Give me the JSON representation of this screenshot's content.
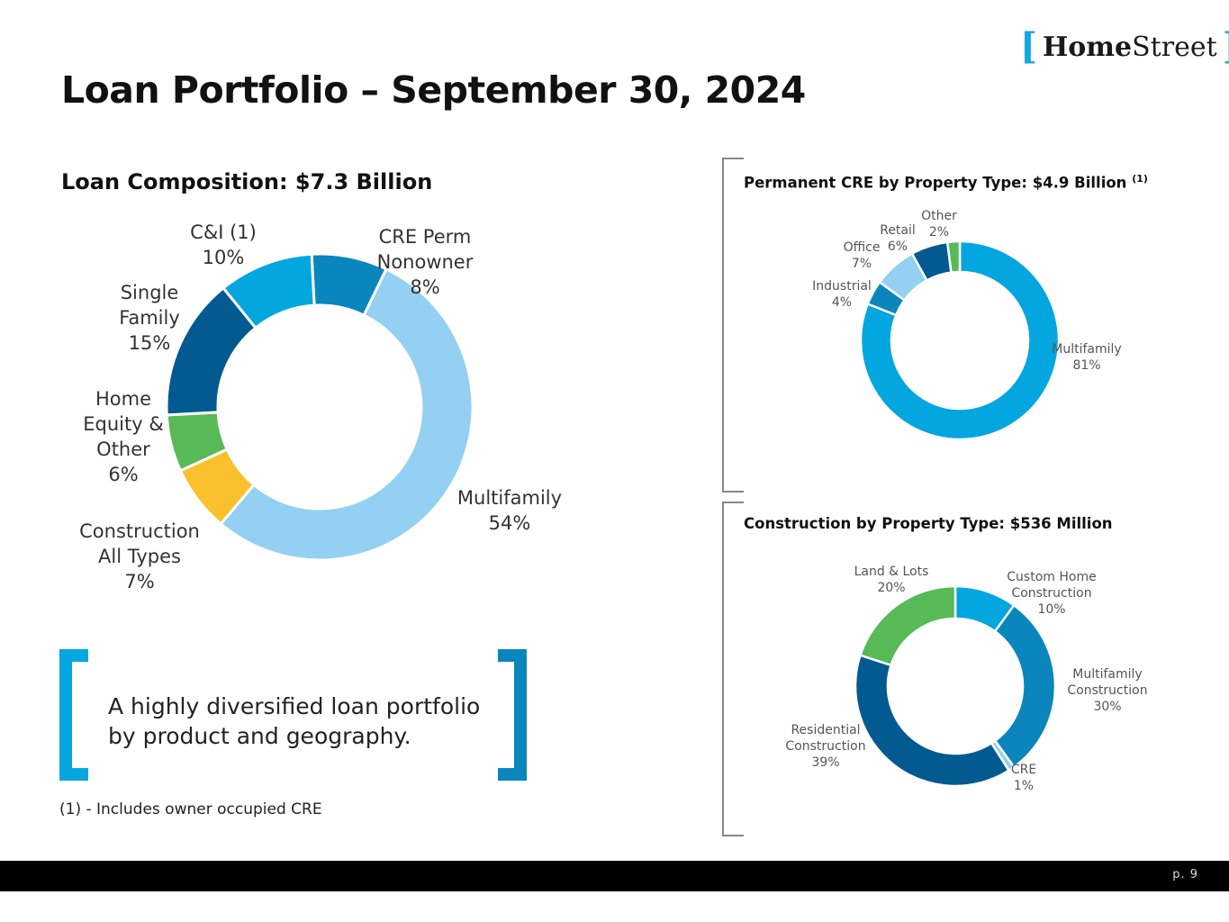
{
  "logo": {
    "open": "[",
    "home": "Home",
    "street": "Street",
    "close": "]"
  },
  "title": "Loan Portfolio – September 30, 2024",
  "quote": {
    "line1": "A highly diversified loan portfolio",
    "line2": "by product and geography."
  },
  "footnote": "(1) - Includes owner occupied CRE",
  "page_number": "p. 9",
  "chart_data": [
    {
      "type": "pie",
      "title": "Loan Composition: $7.3 Billion",
      "categories": [
        "CRE Perm Nonowner",
        "Multifamily",
        "Construction All Types",
        "Home Equity & Other",
        "Single Family",
        "C&I (1)"
      ],
      "values": [
        8,
        54,
        7,
        6,
        15,
        10
      ],
      "labels": [
        [
          "CRE Perm",
          "Nonowner",
          "8%"
        ],
        [
          "Multifamily",
          "54%"
        ],
        [
          "Construction",
          "All Types",
          "7%"
        ],
        [
          "Home",
          "Equity &",
          "Other",
          "6%"
        ],
        [
          "Single",
          "Family",
          "15%"
        ],
        [
          "C&I (1)",
          "10%"
        ]
      ],
      "colors": [
        "#0a86bd",
        "#93d0f1",
        "#fbc02d",
        "#58b957",
        "#035a91",
        "#04a6df"
      ]
    },
    {
      "type": "pie",
      "title": "Permanent CRE by Property Type: $4.9 Billion",
      "title_sup": "(1)",
      "categories": [
        "Multifamily",
        "Industrial",
        "Office",
        "Retail",
        "Other"
      ],
      "values": [
        81,
        4,
        7,
        6,
        2
      ],
      "labels": [
        [
          "Multifamily",
          "81%"
        ],
        [
          "Industrial",
          "4%"
        ],
        [
          "Office",
          "7%"
        ],
        [
          "Retail",
          "6%"
        ],
        [
          "Other",
          "2%"
        ]
      ],
      "colors": [
        "#04a6df",
        "#0a86bd",
        "#93d0f1",
        "#035a91",
        "#58b957"
      ]
    },
    {
      "type": "pie",
      "title": "Construction by Property Type: $536 Million",
      "categories": [
        "Custom Home Construction",
        "Multifamily Construction",
        "CRE",
        "Residential Construction",
        "Land & Lots"
      ],
      "values": [
        10,
        30,
        1,
        39,
        20
      ],
      "labels": [
        [
          "Custom Home",
          "Construction",
          "10%"
        ],
        [
          "Multifamily",
          "Construction",
          "30%"
        ],
        [
          "CRE",
          "1%"
        ],
        [
          "Residential",
          "Construction",
          "39%"
        ],
        [
          "Land & Lots",
          "20%"
        ]
      ],
      "colors": [
        "#04a6df",
        "#0a86bd",
        "#93d0f1",
        "#035a91",
        "#58b957"
      ]
    }
  ]
}
